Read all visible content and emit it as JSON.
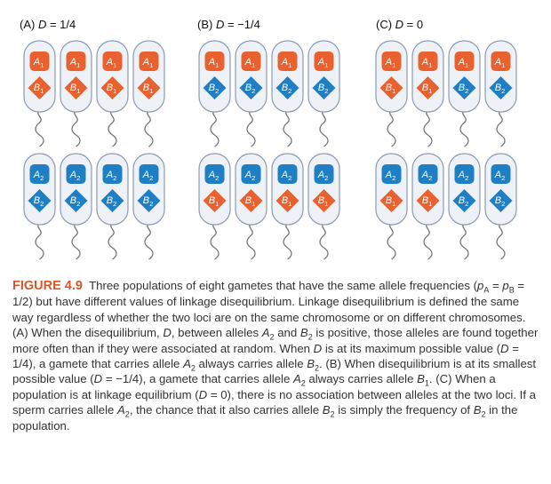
{
  "panels": [
    {
      "title": "(A) D = 1/4",
      "rows": [
        {
          "a": [
            "A1",
            "A1",
            "A1",
            "A1"
          ],
          "b": [
            "B1",
            "B1",
            "B1",
            "B1"
          ]
        },
        {
          "a": [
            "A2",
            "A2",
            "A2",
            "A2"
          ],
          "b": [
            "B2",
            "B2",
            "B2",
            "B2"
          ]
        }
      ]
    },
    {
      "title": "(B) D = −1/4",
      "rows": [
        {
          "a": [
            "A1",
            "A1",
            "A1",
            "A1"
          ],
          "b": [
            "B2",
            "B2",
            "B2",
            "B2"
          ]
        },
        {
          "a": [
            "A2",
            "A2",
            "A2",
            "A2"
          ],
          "b": [
            "B1",
            "B1",
            "B1",
            "B1"
          ]
        }
      ]
    },
    {
      "title": "(C) D = 0",
      "rows": [
        {
          "a": [
            "A1",
            "A1",
            "A1",
            "A1"
          ],
          "b": [
            "B1",
            "B1",
            "B2",
            "B2"
          ]
        },
        {
          "a": [
            "A2",
            "A2",
            "A2",
            "A2"
          ],
          "b": [
            "B1",
            "B1",
            "B2",
            "B2"
          ]
        }
      ]
    }
  ],
  "colors": {
    "allele1": "#e8612e",
    "allele2": "#1e7fc4",
    "cell_fill": "#eef1f6",
    "cell_stroke": "#8a9bb3",
    "caption_label": "#d8572a"
  },
  "caption": {
    "label": "FIGURE 4.9",
    "text": "Three populations of eight gametes that have the same allele frequencies (pA = pB = 1/2) but have different values of linkage disequilibrium. Linkage disequilibrium is defined the same way regardless of whether the two loci are on the same chromosome or on different chromosomes. (A) When the disequilibrium, D, between alleles A2 and B2 is positive, those alleles are found together more often than if they were associated at random. When D is at its maximum possible value (D = 1/4), a gamete that carries allele A2 always carries allele B2. (B) When disequilibrium is at its smallest possible value (D = −1/4), a gamete that carries allele A2 always carries allele B1. (C) When a population is at linkage equilibrium (D = 0), there is no association between alleles at the two loci. If a sperm carries allele A2, the chance that it also carries allele B2 is simply the frequency of B2 in the population."
  }
}
